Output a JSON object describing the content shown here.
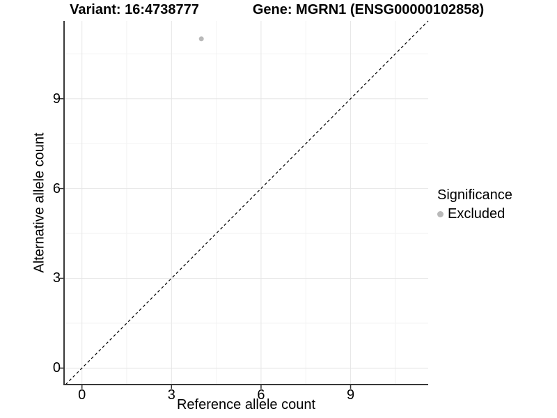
{
  "chart_data": {
    "type": "scatter",
    "title_left": "Variant: 16:4738777",
    "title_right": "Gene: MGRN1 (ENSG00000102858)",
    "xlabel": "Reference allele count",
    "ylabel": "Alternative allele count",
    "xlim": [
      -0.6,
      11.6
    ],
    "ylim": [
      -0.55,
      11.6
    ],
    "x_ticks": [
      0,
      3,
      6,
      9
    ],
    "y_ticks": [
      0,
      3,
      6,
      9
    ],
    "x_minor_ticks": [
      1.5,
      4.5,
      7.5,
      10.5
    ],
    "y_minor_ticks": [
      1.5,
      4.5,
      7.5,
      10.5
    ],
    "grid": true,
    "series": [
      {
        "name": "Excluded",
        "color": "#b9b9b9",
        "marker": "circle",
        "points": [
          [
            4,
            11
          ]
        ]
      }
    ],
    "reference_line": {
      "type": "identity",
      "style": "dashed",
      "color": "#000000"
    },
    "legend": {
      "title": "Significance",
      "position": "right",
      "entries": [
        {
          "label": "Excluded",
          "color": "#b9b9b9",
          "marker": "circle"
        }
      ]
    }
  },
  "colors": {
    "background": "#ffffff",
    "grid_major": "#e6e6e6",
    "grid_minor": "#f2f2f2",
    "axis_line": "#383838",
    "tick_mark": "#333333",
    "text": "#000000"
  }
}
